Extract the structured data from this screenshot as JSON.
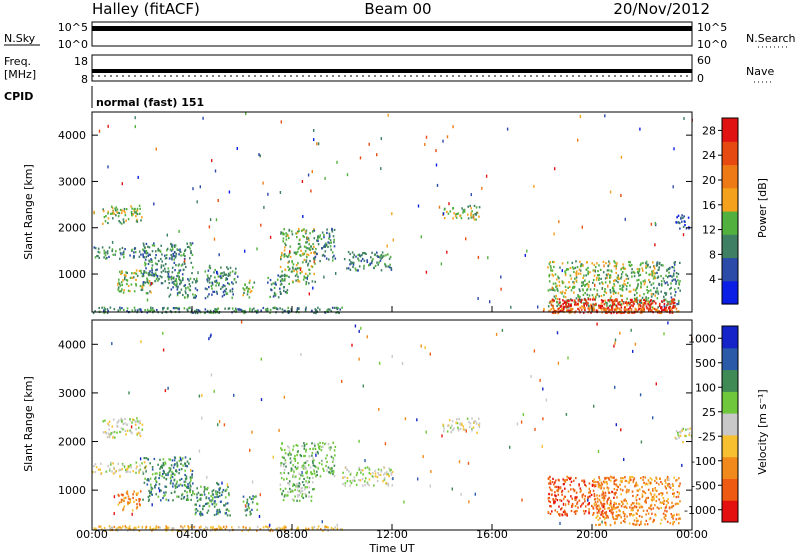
{
  "header": {
    "station": "Halley (fitACF)",
    "beam": "Beam 00",
    "date": "20/Nov/2012"
  },
  "status": {
    "nsky_label": "N.Sky",
    "nsky_ticks": [
      "10^5",
      "10^0"
    ],
    "nsearch_label": "N.Search",
    "nsearch_ticks": [
      "10^5",
      "10^0"
    ],
    "freq_label_1": "Freq.",
    "freq_label_2": "[MHz]",
    "freq_ticks": [
      "18",
      "8"
    ],
    "nave_label": "Nave",
    "nave_ticks": [
      "60",
      "0"
    ],
    "cpid_label": "CPID",
    "cpid_value": "normal (fast) 151"
  },
  "colors": {
    "power_scale": [
      "#0a1ee6",
      "#2c4aa8",
      "#3f7f63",
      "#52b03e",
      "#f4a21d",
      "#ee7a15",
      "#e64a10",
      "#e01212"
    ],
    "velocity_scale": [
      "#e41010",
      "#ef5a12",
      "#f18a1a",
      "#f6c030",
      "#c8c8c8",
      "#6fc83c",
      "#3f8a55",
      "#2a5aa8",
      "#1424c8"
    ]
  },
  "chart_data": [
    {
      "type": "heatmap",
      "title": "Power",
      "xlabel": "",
      "ylabel": "Slant Range [km]",
      "xlim_hours": [
        0,
        24
      ],
      "ylim": [
        180,
        4500
      ],
      "x_ticks": [
        "00:00",
        "04:00",
        "08:00",
        "12:00",
        "16:00",
        "20:00",
        "00:00"
      ],
      "y_ticks": [
        1000,
        2000,
        3000,
        4000
      ],
      "colorbar": {
        "label": "Power [dB]",
        "ticks": [
          "4",
          "8",
          "12",
          "16",
          "20",
          "24",
          "28"
        ],
        "range": [
          0,
          30
        ]
      },
      "echo_regions": [
        {
          "t0": 0.0,
          "t1": 2.2,
          "r0": 1350,
          "r1": 1600,
          "level": 2
        },
        {
          "t0": 0.4,
          "t1": 2.0,
          "r0": 2100,
          "r1": 2500,
          "level": 3
        },
        {
          "t0": 1.0,
          "t1": 2.4,
          "r0": 600,
          "r1": 1100,
          "level": 3
        },
        {
          "t0": 2.0,
          "t1": 4.0,
          "r0": 800,
          "r1": 1700,
          "level": 2
        },
        {
          "t0": 3.0,
          "t1": 4.2,
          "r0": 500,
          "r1": 1000,
          "level": 2
        },
        {
          "t0": 4.5,
          "t1": 5.8,
          "r0": 500,
          "r1": 1200,
          "level": 2
        },
        {
          "t0": 6.0,
          "t1": 6.5,
          "r0": 500,
          "r1": 900,
          "level": 3
        },
        {
          "t0": 7.0,
          "t1": 7.8,
          "r0": 500,
          "r1": 1000,
          "level": 2
        },
        {
          "t0": 7.5,
          "t1": 8.9,
          "r0": 800,
          "r1": 2000,
          "level": 3
        },
        {
          "t0": 8.8,
          "t1": 9.7,
          "r0": 1300,
          "r1": 2000,
          "level": 2
        },
        {
          "t0": 10.0,
          "t1": 12.0,
          "r0": 1100,
          "r1": 1500,
          "level": 2
        },
        {
          "t0": 14.0,
          "t1": 15.5,
          "r0": 2200,
          "r1": 2500,
          "level": 3
        },
        {
          "t0": 18.2,
          "t1": 22.5,
          "r0": 300,
          "r1": 1300,
          "level": 3
        },
        {
          "t0": 22.5,
          "t1": 23.5,
          "r0": 300,
          "r1": 1300,
          "level": 2
        },
        {
          "t0": 23.3,
          "t1": 24.0,
          "r0": 2000,
          "r1": 2300,
          "level": 1
        }
      ],
      "ground_scatter": [
        {
          "t0": 18.3,
          "t1": 23.3,
          "r0": 180,
          "r1": 480,
          "level": 7
        },
        {
          "t0": 18.0,
          "t1": 23.5,
          "r0": 180,
          "r1": 300,
          "level": 5
        },
        {
          "t0": 0.0,
          "t1": 10.0,
          "r0": 180,
          "r1": 300,
          "level": 2
        }
      ]
    },
    {
      "type": "heatmap",
      "title": "Velocity",
      "xlabel": "Time UT",
      "ylabel": "Slant Range [km]",
      "xlim_hours": [
        0,
        24
      ],
      "ylim": [
        180,
        4500
      ],
      "x_ticks": [
        "00:00",
        "04:00",
        "08:00",
        "12:00",
        "16:00",
        "20:00",
        "00:00"
      ],
      "y_ticks": [
        1000,
        2000,
        3000,
        4000
      ],
      "colorbar": {
        "label": "Velocity [m s⁻¹]",
        "ticks": [
          "1000",
          "500",
          "100",
          "25",
          "-25",
          "-100",
          "-500",
          "-1000"
        ],
        "range": [
          -1000,
          1000
        ]
      },
      "echo_regions": [
        {
          "t0": 0.0,
          "t1": 2.2,
          "r0": 1350,
          "r1": 1600,
          "level": 4
        },
        {
          "t0": 0.4,
          "t1": 2.0,
          "r0": 2100,
          "r1": 2500,
          "level": 4
        },
        {
          "t0": 1.0,
          "t1": 2.0,
          "r0": 600,
          "r1": 1000,
          "level": 2
        },
        {
          "t0": 2.0,
          "t1": 4.0,
          "r0": 800,
          "r1": 1700,
          "level": 6
        },
        {
          "t0": 4.0,
          "t1": 5.5,
          "r0": 500,
          "r1": 1200,
          "level": 6
        },
        {
          "t0": 6.0,
          "t1": 6.6,
          "r0": 500,
          "r1": 900,
          "level": 6
        },
        {
          "t0": 7.5,
          "t1": 8.9,
          "r0": 800,
          "r1": 2000,
          "level": 5
        },
        {
          "t0": 8.8,
          "t1": 9.7,
          "r0": 1300,
          "r1": 2000,
          "level": 5
        },
        {
          "t0": 10.0,
          "t1": 12.0,
          "r0": 1100,
          "r1": 1500,
          "level": 4
        },
        {
          "t0": 14.0,
          "t1": 15.5,
          "r0": 2200,
          "r1": 2500,
          "level": 4
        },
        {
          "t0": 18.2,
          "t1": 21.0,
          "r0": 500,
          "r1": 1300,
          "level": 1
        },
        {
          "t0": 20.0,
          "t1": 23.5,
          "r0": 300,
          "r1": 1300,
          "level": 2
        },
        {
          "t0": 23.3,
          "t1": 24.0,
          "r0": 2000,
          "r1": 2300,
          "level": 4
        }
      ],
      "ground_scatter": [
        {
          "t0": 0.0,
          "t1": 10.0,
          "r0": 180,
          "r1": 280,
          "level": 3
        }
      ]
    }
  ]
}
